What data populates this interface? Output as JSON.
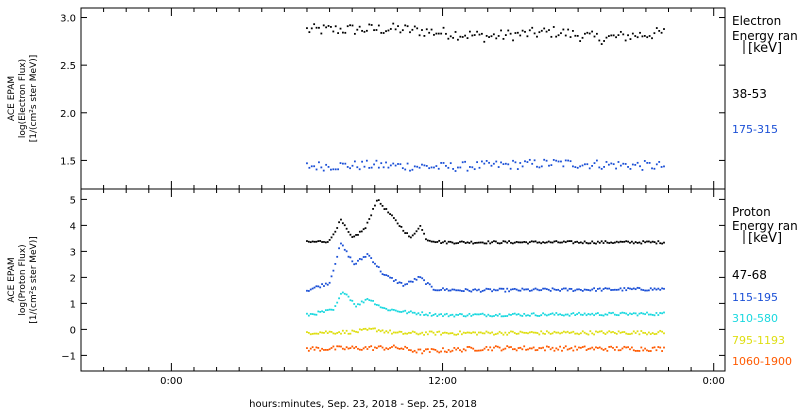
{
  "chart_data": {
    "type": "scatter",
    "x_axis": {
      "title": "hours:minutes, Sep. 23, 2018 - Sep. 25, 2018",
      "range_hours": [
        -4.0,
        24.5
      ],
      "major_ticks": [
        {
          "hours": 0,
          "label": "0:00"
        },
        {
          "hours": 12,
          "label": "12:00"
        },
        {
          "hours": 24,
          "label": "0:00"
        }
      ],
      "minor_tick_step_hours": 1
    },
    "panels": [
      {
        "id": "electron",
        "ylabel_lines": [
          "ACE EPAM",
          "log(Electron Flux)",
          "[1/(cm²s ster MeV)]"
        ],
        "ylim": [
          1.2,
          3.1
        ],
        "yticks": [
          1.5,
          2.0,
          2.5,
          3.0
        ],
        "ytick_labels": [
          "1.5",
          "2.0",
          "2.5",
          "3.0"
        ],
        "legend_title": [
          "Electron",
          "Energy ran",
          "[keV]"
        ],
        "series": [
          {
            "name": "38-53",
            "color": "#000000",
            "x_start": 6.0,
            "x_end": 21.8,
            "n_points": 150,
            "segments": [
              [
                6.0,
                2.87
              ],
              [
                10.0,
                2.88
              ],
              [
                14.0,
                2.8
              ],
              [
                17.0,
                2.85
              ],
              [
                19.0,
                2.78
              ],
              [
                21.8,
                2.84
              ]
            ],
            "noise": 0.06
          },
          {
            "name": "175-315",
            "color": "#1a4fd6",
            "x_start": 6.0,
            "x_end": 21.8,
            "n_points": 150,
            "segments": [
              [
                6.0,
                1.44
              ],
              [
                9.0,
                1.45
              ],
              [
                12.0,
                1.43
              ],
              [
                17.0,
                1.47
              ],
              [
                21.8,
                1.44
              ]
            ],
            "noise": 0.05
          }
        ]
      },
      {
        "id": "proton",
        "ylabel_lines": [
          "ACE EPAM",
          "log(Proton Flux)",
          "[1/(cm²s ster MeV)]"
        ],
        "ylim": [
          -1.6,
          5.4
        ],
        "yticks": [
          -1,
          0,
          1,
          2,
          3,
          4,
          5
        ],
        "ytick_labels": [
          "−1",
          "0",
          "1",
          "2",
          "3",
          "4",
          "5"
        ],
        "legend_title": [
          "Proton",
          "Energy ran",
          "[keV]"
        ],
        "series": [
          {
            "name": "47-68",
            "color": "#000000",
            "x_start": 6.0,
            "x_end": 21.8,
            "n_points": 190,
            "segments": [
              [
                6.0,
                3.35
              ],
              [
                7.0,
                3.4
              ],
              [
                7.5,
                4.2
              ],
              [
                8.0,
                3.5
              ],
              [
                8.6,
                3.9
              ],
              [
                9.1,
                5.0
              ],
              [
                9.8,
                4.3
              ],
              [
                10.6,
                3.5
              ],
              [
                11.0,
                4.0
              ],
              [
                11.3,
                3.45
              ],
              [
                12.0,
                3.35
              ],
              [
                21.8,
                3.35
              ]
            ],
            "noise": 0.05
          },
          {
            "name": "115-195",
            "color": "#1a4fd6",
            "x_start": 6.0,
            "x_end": 21.8,
            "n_points": 190,
            "segments": [
              [
                6.0,
                1.5
              ],
              [
                7.0,
                1.8
              ],
              [
                7.5,
                3.3
              ],
              [
                8.1,
                2.5
              ],
              [
                8.7,
                2.9
              ],
              [
                9.4,
                2.1
              ],
              [
                10.3,
                1.7
              ],
              [
                11.0,
                2.0
              ],
              [
                11.6,
                1.55
              ],
              [
                13.0,
                1.5
              ],
              [
                21.8,
                1.55
              ]
            ],
            "noise": 0.06
          },
          {
            "name": "310-580",
            "color": "#19d8df",
            "x_start": 6.0,
            "x_end": 21.8,
            "n_points": 190,
            "segments": [
              [
                6.0,
                0.55
              ],
              [
                7.2,
                0.75
              ],
              [
                7.6,
                1.5
              ],
              [
                8.2,
                0.9
              ],
              [
                8.7,
                1.2
              ],
              [
                9.4,
                0.8
              ],
              [
                10.5,
                0.65
              ],
              [
                12.0,
                0.55
              ],
              [
                21.8,
                0.6
              ]
            ],
            "noise": 0.06
          },
          {
            "name": "795-1193",
            "color": "#dede10",
            "x_start": 6.0,
            "x_end": 21.8,
            "n_points": 190,
            "segments": [
              [
                6.0,
                -0.12
              ],
              [
                8.0,
                -0.1
              ],
              [
                9.0,
                0.0
              ],
              [
                10.0,
                -0.15
              ],
              [
                21.8,
                -0.12
              ]
            ],
            "noise": 0.07
          },
          {
            "name": "1060-1900",
            "color": "#ff5a00",
            "x_start": 6.0,
            "x_end": 21.8,
            "n_points": 190,
            "segments": [
              [
                6.0,
                -0.75
              ],
              [
                10.0,
                -0.7
              ],
              [
                11.0,
                -0.85
              ],
              [
                14.0,
                -0.72
              ],
              [
                21.8,
                -0.75
              ]
            ],
            "noise": 0.09
          }
        ]
      }
    ]
  }
}
